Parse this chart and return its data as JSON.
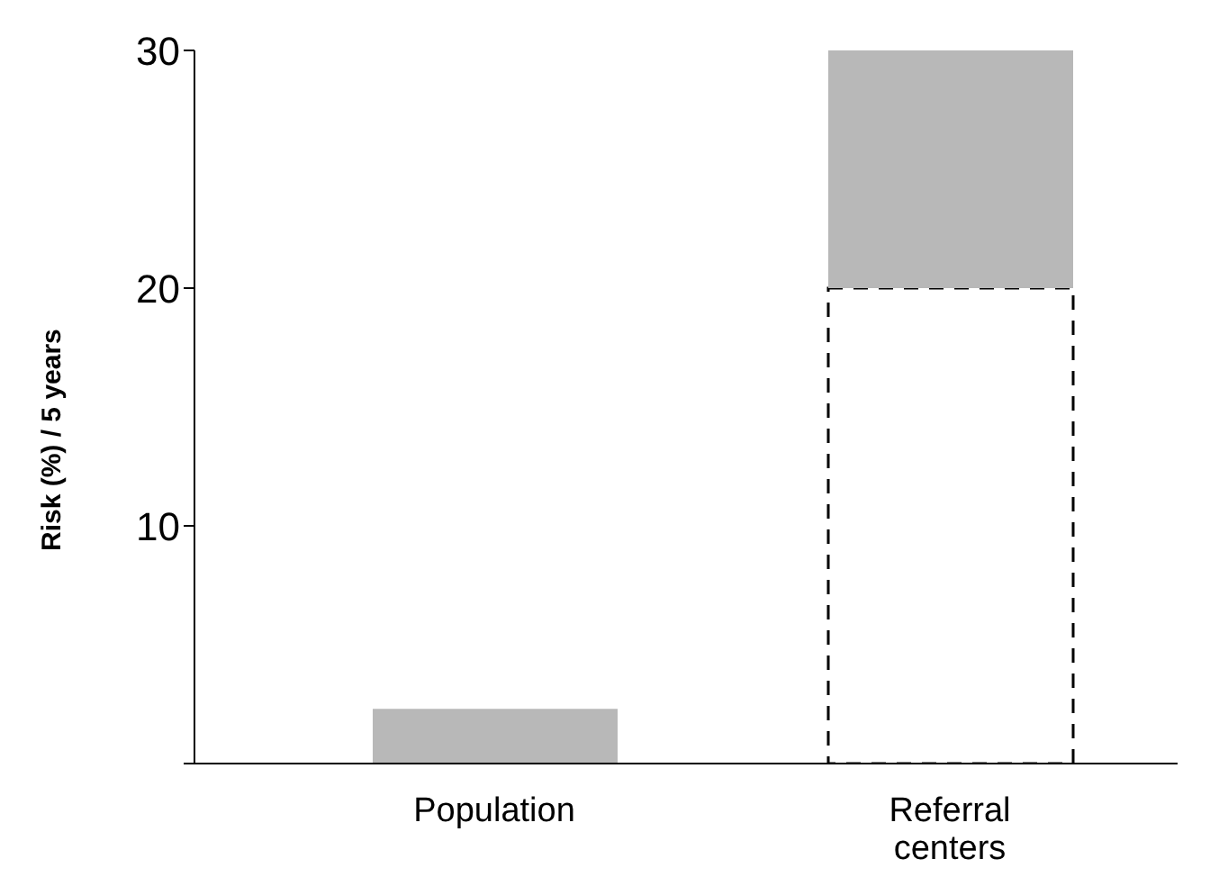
{
  "chart_data": {
    "type": "bar",
    "ylabel": "Risk (%) / 5 years",
    "categories": [
      "Population",
      "Referral centers"
    ],
    "stacked": true,
    "series": [
      {
        "color": "#ffffff",
        "line_style": "dashed",
        "values": [
          0,
          20
        ]
      },
      {
        "color": "#b8b8b8",
        "values": [
          2.3,
          10
        ]
      }
    ],
    "ylim": [
      0,
      30
    ],
    "yticks": [
      {
        "value": 0,
        "label": null
      },
      10,
      20,
      30
    ]
  }
}
